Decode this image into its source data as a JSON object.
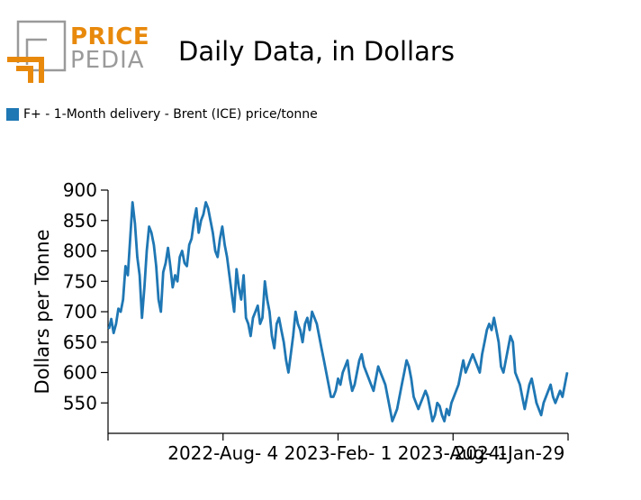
{
  "logo": {
    "line1": "PRICE",
    "line2": "PEDIA",
    "orange": "#e8890c",
    "gray": "#9a9a9a"
  },
  "chart_data": {
    "type": "line",
    "title": "Daily Data, in Dollars",
    "ylabel": "Dollars per Tonne",
    "ylim": [
      500,
      900
    ],
    "yticks": [
      550,
      600,
      650,
      700,
      750,
      800,
      850,
      900
    ],
    "xticks": [
      "",
      "2022-Aug- 4",
      "2023-Feb- 1",
      "2023-Aug- 1",
      "2024-Jan-29"
    ],
    "grid": false,
    "legend_position": "top-left",
    "series": [
      {
        "name": "F+ - 1-Month delivery - Brent (ICE) price/tonne",
        "color": "#1f77b4",
        "values": [
          672,
          688,
          665,
          680,
          705,
          700,
          720,
          775,
          760,
          820,
          880,
          845,
          790,
          760,
          690,
          740,
          800,
          840,
          830,
          810,
          775,
          720,
          700,
          765,
          780,
          805,
          775,
          740,
          760,
          750,
          790,
          800,
          780,
          775,
          810,
          820,
          850,
          870,
          830,
          850,
          860,
          880,
          870,
          850,
          830,
          800,
          790,
          820,
          840,
          810,
          790,
          760,
          730,
          700,
          770,
          740,
          720,
          760,
          690,
          680,
          660,
          690,
          700,
          710,
          680,
          690,
          750,
          720,
          700,
          660,
          640,
          680,
          690,
          670,
          650,
          620,
          600,
          630,
          660,
          700,
          680,
          670,
          650,
          680,
          690,
          670,
          700,
          690,
          680,
          660,
          640,
          620,
          600,
          580,
          560,
          560,
          570,
          590,
          580,
          600,
          610,
          620,
          590,
          570,
          580,
          600,
          620,
          630,
          610,
          600,
          590,
          580,
          570,
          590,
          610,
          600,
          590,
          580,
          560,
          540,
          520,
          530,
          540,
          560,
          580,
          600,
          620,
          610,
          590,
          560,
          550,
          540,
          550,
          560,
          570,
          560,
          540,
          520,
          530,
          550,
          545,
          530,
          520,
          540,
          530,
          550,
          560,
          570,
          580,
          600,
          620,
          600,
          610,
          620,
          630,
          620,
          610,
          600,
          630,
          650,
          670,
          680,
          670,
          690,
          670,
          650,
          610,
          600,
          620,
          640,
          660,
          650,
          600,
          590,
          580,
          560,
          540,
          560,
          580,
          590,
          570,
          550,
          540,
          530,
          550,
          560,
          570,
          580,
          560,
          550,
          560,
          570,
          560,
          580,
          600
        ]
      }
    ]
  }
}
